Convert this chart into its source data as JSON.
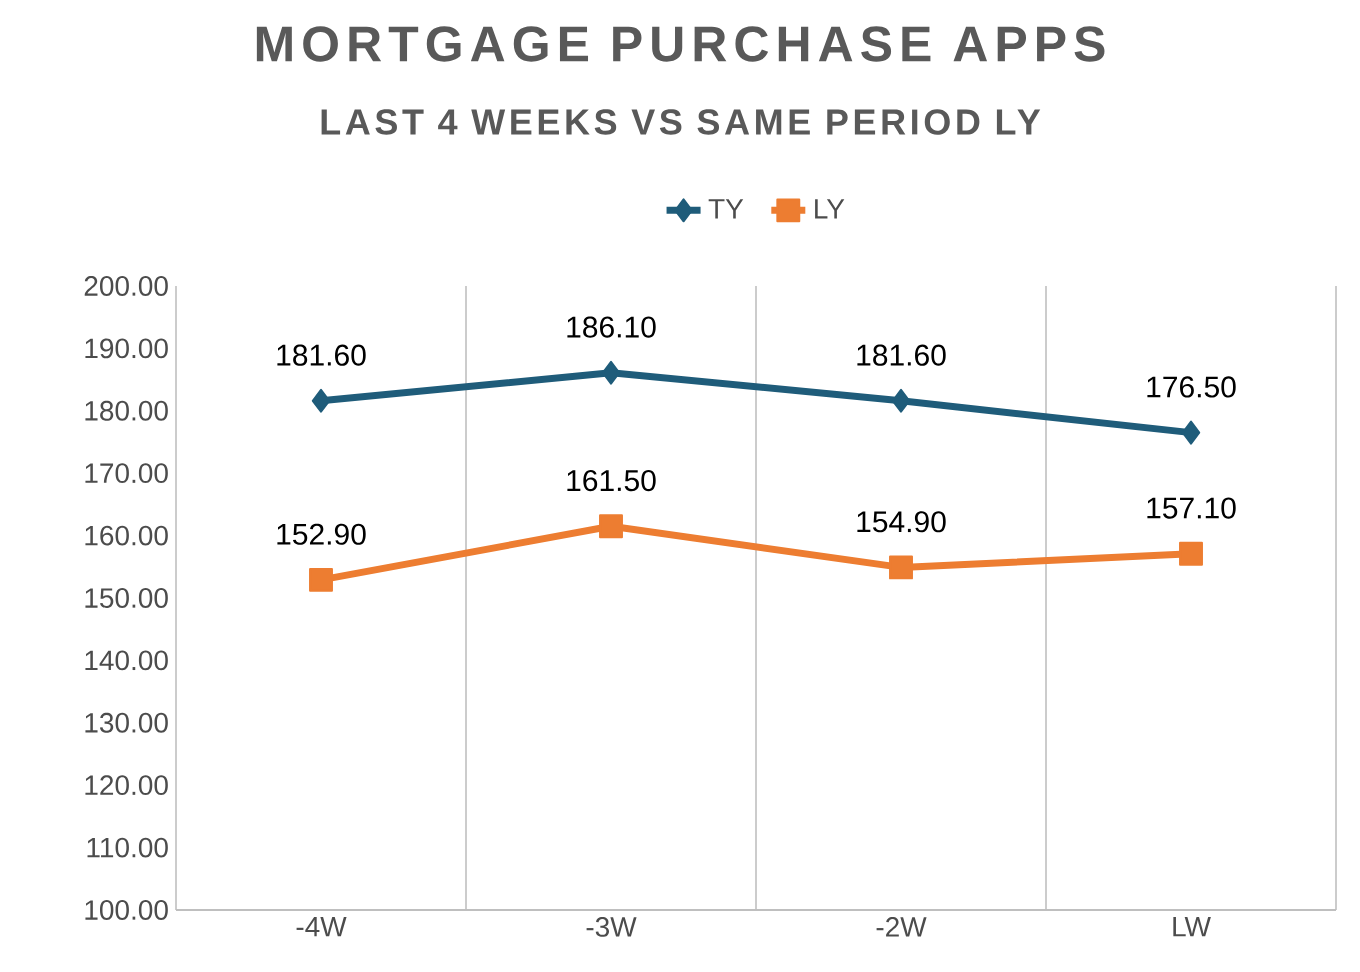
{
  "chart_data": {
    "type": "line",
    "title": "MORTGAGE PURCHASE APPS",
    "subtitle": "LAST 4 WEEKS VS SAME PERIOD LY",
    "categories": [
      "-4W",
      "-3W",
      "-2W",
      "LW"
    ],
    "series": [
      {
        "name": "TY",
        "color": "#1f5c7a",
        "marker": "diamond",
        "values": [
          181.6,
          186.1,
          181.6,
          176.5
        ],
        "value_labels": [
          "181.60",
          "186.10",
          "181.60",
          "176.50"
        ]
      },
      {
        "name": "LY",
        "color": "#ed7d31",
        "marker": "square",
        "values": [
          152.9,
          161.5,
          154.9,
          157.1
        ],
        "value_labels": [
          "152.90",
          "161.50",
          "154.90",
          "157.10"
        ]
      }
    ],
    "ylim": [
      100,
      200
    ],
    "yticks": [
      {
        "value": 100,
        "label": "100.00"
      },
      {
        "value": 110,
        "label": "110.00"
      },
      {
        "value": 120,
        "label": "120.00"
      },
      {
        "value": 130,
        "label": "130.00"
      },
      {
        "value": 140,
        "label": "140.00"
      },
      {
        "value": 150,
        "label": "150.00"
      },
      {
        "value": 160,
        "label": "160.00"
      },
      {
        "value": 170,
        "label": "170.00"
      },
      {
        "value": 180,
        "label": "180.00"
      },
      {
        "value": 190,
        "label": "190.00"
      },
      {
        "value": 200,
        "label": "200.00"
      }
    ],
    "grid": "x",
    "legend": "top",
    "line_style": "solid"
  }
}
